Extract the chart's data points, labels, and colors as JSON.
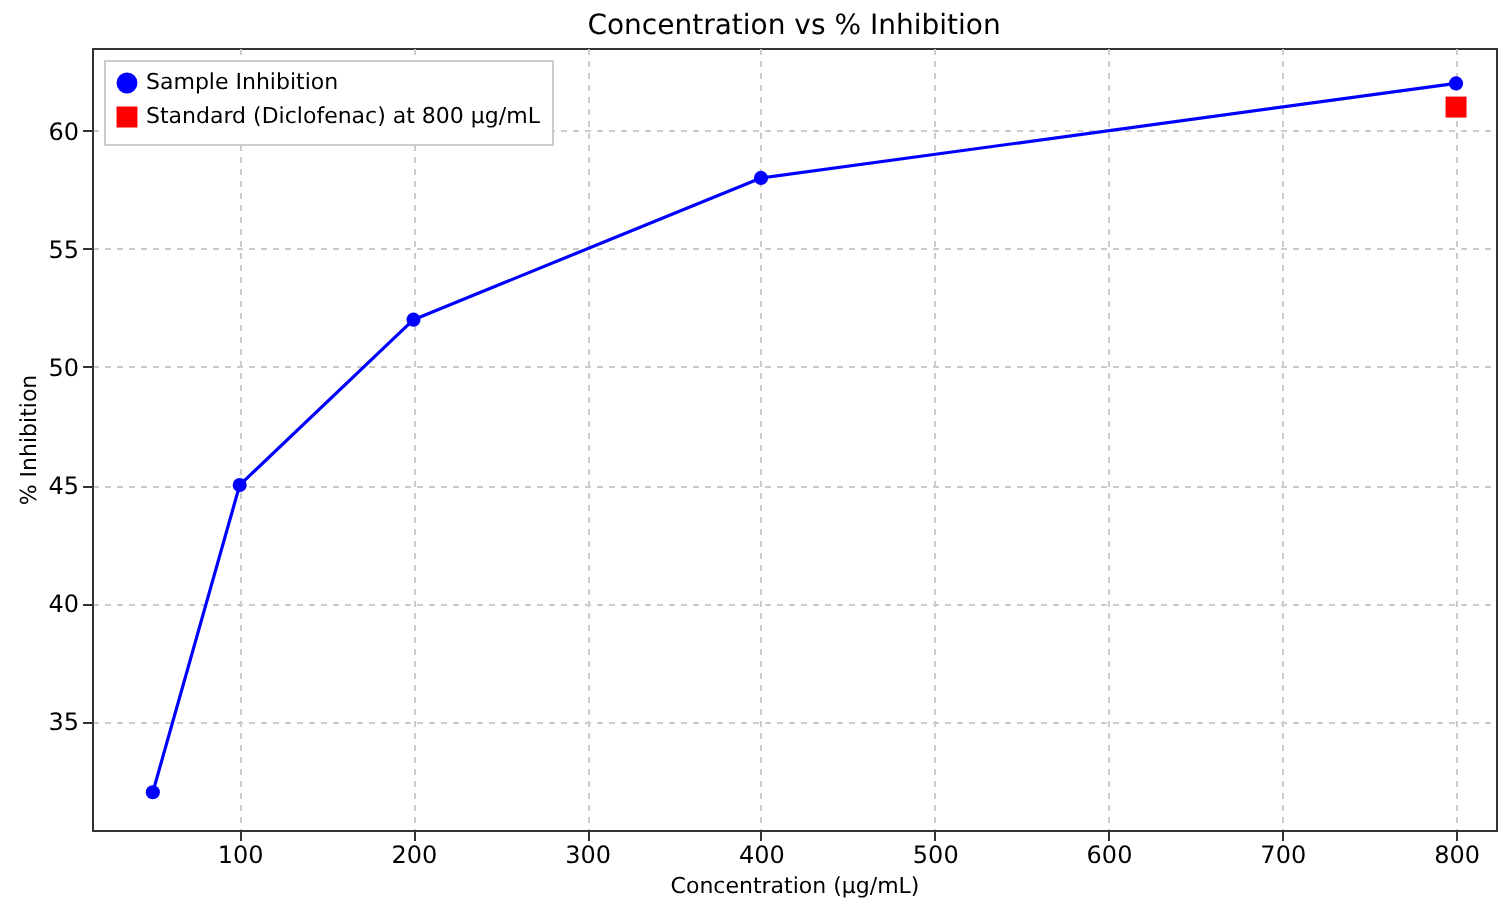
{
  "chart_data": {
    "type": "line",
    "title": "Concentration vs % Inhibition",
    "xlabel": "Concentration (µg/mL)",
    "ylabel": "% Inhibition",
    "xlim": [
      15,
      823
    ],
    "xticks": [
      100,
      200,
      300,
      400,
      500,
      600,
      700,
      800
    ],
    "ylim": [
      30.4,
      63.5
    ],
    "yticks": [
      35,
      40,
      45,
      50,
      55,
      60
    ],
    "grid": true,
    "legend": "top left",
    "line_style": "solid",
    "series": [
      {
        "name": "Sample Inhibition",
        "type": "line",
        "marker": "circle",
        "color": "#0000ff",
        "x": [
          50,
          100,
          200,
          400,
          800
        ],
        "values": [
          32,
          45,
          52,
          58,
          62
        ]
      },
      {
        "name": "Standard (Diclofenac) at 800 µg/mL",
        "type": "scatter",
        "marker": "square",
        "color": "#ff0000",
        "x": [
          800
        ],
        "values": [
          61
        ]
      }
    ]
  }
}
